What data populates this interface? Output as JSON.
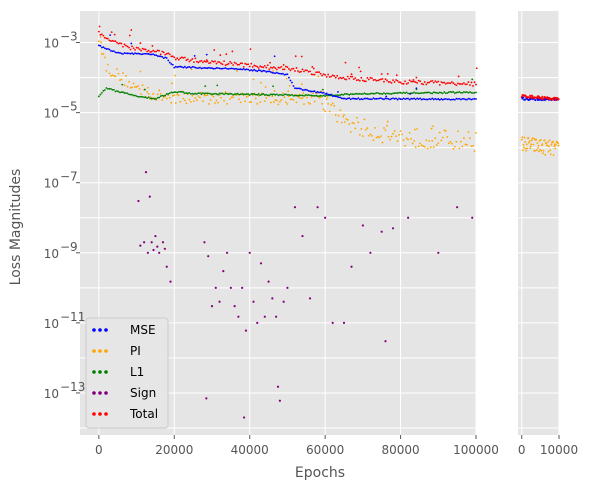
{
  "chart_data": {
    "type": "scatter",
    "xlabel": "Epochs",
    "ylabel": "Loss Magnitudes",
    "yscale": "log",
    "grid": true,
    "legend_position": "lower-left",
    "panels": [
      {
        "name": "main",
        "xlim": [
          -5000,
          100000
        ],
        "xticks": [
          0,
          20000,
          40000,
          60000,
          80000,
          100000
        ],
        "xtick_labels": [
          "0",
          "20000",
          "40000",
          "60000",
          "80000",
          "100000"
        ]
      },
      {
        "name": "continuation",
        "xlim": [
          -1000,
          10000
        ],
        "xticks": [
          0,
          10000
        ],
        "xtick_labels": [
          "0",
          "10000"
        ]
      }
    ],
    "ylim_exponent": [
      -14.2,
      -2.1
    ],
    "yticks_exponent": [
      -13,
      -11,
      -9,
      -7,
      -5,
      -3
    ],
    "ytick_labels": [
      "10",
      "10",
      "10",
      "10",
      "10",
      "10"
    ],
    "ytick_superscripts": [
      "−13",
      "−11",
      "−9",
      "−7",
      "−5",
      "−3"
    ],
    "series": [
      {
        "name": "MSE",
        "color": "#0000ff",
        "trend_main": [
          [
            0,
            0.0008
          ],
          [
            5000,
            0.0005
          ],
          [
            15000,
            0.00045
          ],
          [
            18000,
            0.00035
          ],
          [
            20000,
            0.0002
          ],
          [
            35000,
            0.00018
          ],
          [
            45000,
            0.00015
          ],
          [
            50000,
            0.00012
          ],
          [
            52000,
            5e-05
          ],
          [
            60000,
            3.5e-05
          ],
          [
            65000,
            2.5e-05
          ],
          [
            100000,
            2.4e-05
          ]
        ],
        "trend_cont": [
          [
            0,
            2.5e-05
          ],
          [
            10000,
            2.4e-05
          ]
        ]
      },
      {
        "name": "PI",
        "color": "#ffa500",
        "trend_main": [
          [
            0,
            0.0015
          ],
          [
            2000,
            0.0002
          ],
          [
            5000,
            0.00012
          ],
          [
            10000,
            5e-05
          ],
          [
            15000,
            3e-05
          ],
          [
            20000,
            2.7e-05
          ],
          [
            50000,
            2.5e-05
          ],
          [
            58000,
            2.4e-05
          ],
          [
            60000,
            1.5e-05
          ],
          [
            65000,
            6e-06
          ],
          [
            70000,
            3.5e-06
          ],
          [
            80000,
            2e-06
          ],
          [
            100000,
            1.5e-06
          ]
        ],
        "trend_cont": [
          [
            0,
            1.3e-06
          ],
          [
            10000,
            9e-07
          ]
        ]
      },
      {
        "name": "L1",
        "color": "#008000",
        "trend_main": [
          [
            0,
            3e-05
          ],
          [
            2000,
            5e-05
          ],
          [
            5000,
            4e-05
          ],
          [
            10000,
            3e-05
          ],
          [
            15000,
            2.5e-05
          ],
          [
            20000,
            4e-05
          ],
          [
            25000,
            3.5e-05
          ],
          [
            50000,
            3.2e-05
          ],
          [
            60000,
            3e-05
          ],
          [
            70000,
            3.5e-05
          ],
          [
            100000,
            3.8e-05
          ]
        ],
        "trend_cont": []
      },
      {
        "name": "Sign",
        "color": "#800080",
        "points_main": [
          [
            10500,
            3e-08
          ],
          [
            11000,
            1.6e-09
          ],
          [
            12000,
            2e-09
          ],
          [
            12500,
            2e-07
          ],
          [
            13000,
            1e-09
          ],
          [
            13500,
            4e-08
          ],
          [
            14000,
            2e-09
          ],
          [
            14500,
            1.2e-09
          ],
          [
            15000,
            3e-09
          ],
          [
            15500,
            1.5e-09
          ],
          [
            16000,
            1e-09
          ],
          [
            17000,
            2e-09
          ],
          [
            17500,
            1.3e-09
          ],
          [
            18000,
            4e-10
          ],
          [
            19000,
            1.5e-10
          ],
          [
            28000,
            2e-09
          ],
          [
            28500,
            7e-14
          ],
          [
            29000,
            8e-10
          ],
          [
            30000,
            3e-11
          ],
          [
            31000,
            1e-10
          ],
          [
            32000,
            4e-11
          ],
          [
            33000,
            3e-10
          ],
          [
            34000,
            1e-09
          ],
          [
            35000,
            1e-10
          ],
          [
            36000,
            3e-11
          ],
          [
            37000,
            1.5e-11
          ],
          [
            38000,
            1e-10
          ],
          [
            38500,
            2e-14
          ],
          [
            39000,
            6e-12
          ],
          [
            40000,
            1e-09
          ],
          [
            41000,
            4e-11
          ],
          [
            42000,
            1e-11
          ],
          [
            43000,
            5e-10
          ],
          [
            44000,
            1.5e-11
          ],
          [
            45000,
            1.5e-10
          ],
          [
            46000,
            5e-11
          ],
          [
            47000,
            1.5e-11
          ],
          [
            47500,
            1.5e-13
          ],
          [
            48000,
            6e-14
          ],
          [
            49000,
            4e-11
          ],
          [
            50000,
            1e-10
          ],
          [
            52000,
            2e-08
          ],
          [
            54000,
            3e-09
          ],
          [
            56000,
            5e-11
          ],
          [
            58000,
            2e-08
          ],
          [
            60000,
            1e-08
          ],
          [
            62000,
            1e-11
          ],
          [
            65000,
            1e-11
          ],
          [
            67000,
            4e-10
          ],
          [
            70000,
            6e-09
          ],
          [
            72000,
            1e-09
          ],
          [
            75000,
            4e-09
          ],
          [
            76000,
            3e-12
          ],
          [
            78000,
            5e-09
          ],
          [
            82000,
            1e-08
          ],
          [
            90000,
            1e-09
          ],
          [
            95000,
            2e-08
          ],
          [
            99000,
            1e-08
          ]
        ]
      },
      {
        "name": "Total",
        "color": "#ff0000",
        "trend_main": [
          [
            0,
            0.002
          ],
          [
            3000,
            0.0011
          ],
          [
            5000,
            0.0009
          ],
          [
            10000,
            0.00065
          ],
          [
            18000,
            0.0005
          ],
          [
            20000,
            0.00035
          ],
          [
            30000,
            0.00028
          ],
          [
            40000,
            0.00022
          ],
          [
            50000,
            0.00018
          ],
          [
            55000,
            0.00015
          ],
          [
            60000,
            0.00012
          ],
          [
            65000,
            0.0001
          ],
          [
            80000,
            7.5e-05
          ],
          [
            100000,
            6.5e-05
          ]
        ],
        "trend_cont": [
          [
            0,
            3e-05
          ],
          [
            10000,
            2.4e-05
          ]
        ]
      }
    ]
  }
}
